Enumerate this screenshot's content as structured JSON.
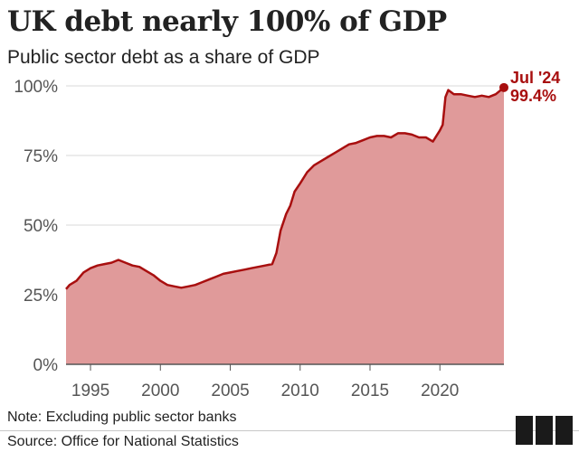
{
  "header": {
    "title": "UK debt nearly 100% of GDP",
    "subtitle": "Public sector debt as a share of GDP"
  },
  "footer": {
    "note": "Note: Excluding public sector banks",
    "source": "Source: Office for National Statistics"
  },
  "logo": {
    "icon": "bbc-blocks-logo-icon"
  },
  "chart_data": {
    "type": "area",
    "title": "UK debt nearly 100% of GDP",
    "subtitle": "Public sector debt as a share of GDP",
    "xlabel": "",
    "ylabel": "",
    "xlim": [
      1993.25,
      2024.58
    ],
    "ylim": [
      0,
      100
    ],
    "xticks": [
      1995,
      2000,
      2005,
      2010,
      2015,
      2020
    ],
    "yticks": [
      {
        "value": 0,
        "label": "0%"
      },
      {
        "value": 25,
        "label": "25%"
      },
      {
        "value": 50,
        "label": "50%"
      },
      {
        "value": 75,
        "label": "75%"
      },
      {
        "value": 100,
        "label": "100%"
      }
    ],
    "grid": true,
    "colors": {
      "line": "#a80f0f",
      "fill": "#e09a9a",
      "grid": "#d9d9d9",
      "axis": "#555555"
    },
    "series": [
      {
        "x": [
          1993.25,
          1993.5,
          1994,
          1994.5,
          1995,
          1995.5,
          1996,
          1996.5,
          1997,
          1997.5,
          1998,
          1998.5,
          1999,
          1999.5,
          2000,
          2000.5,
          2001,
          2001.5,
          2002,
          2002.5,
          2003,
          2003.5,
          2004,
          2004.5,
          2005,
          2005.5,
          2006,
          2006.5,
          2007,
          2007.5,
          2008,
          2008.3,
          2008.6,
          2009,
          2009.3,
          2009.6,
          2010,
          2010.5,
          2011,
          2011.5,
          2012,
          2012.5,
          2013,
          2013.5,
          2014,
          2014.5,
          2015,
          2015.5,
          2016,
          2016.5,
          2017,
          2017.5,
          2018,
          2018.5,
          2019,
          2019.5,
          2020,
          2020.2,
          2020.4,
          2020.6,
          2021,
          2021.5,
          2022,
          2022.5,
          2023,
          2023.5,
          2024,
          2024.58
        ],
        "values": [
          27,
          28.5,
          30,
          33,
          34.5,
          35.5,
          36,
          36.5,
          37.5,
          36.5,
          35.5,
          35,
          33.5,
          32,
          30,
          28.5,
          28,
          27.5,
          28,
          28.5,
          29.5,
          30.5,
          31.5,
          32.5,
          33,
          33.5,
          34,
          34.5,
          35,
          35.5,
          36,
          40,
          48,
          54,
          57,
          62,
          65,
          69,
          71.5,
          73,
          74.5,
          76,
          77.5,
          79,
          79.5,
          80.5,
          81.5,
          82,
          82,
          81.5,
          83,
          83,
          82.5,
          81.5,
          81.5,
          80,
          84,
          86,
          96,
          98.5,
          97,
          97,
          96.5,
          96,
          96.5,
          96,
          97,
          99.4
        ]
      }
    ],
    "annotation": {
      "date_label": "Jul '24",
      "value_label": "99.4%",
      "x": 2024.58,
      "y": 99.4
    }
  }
}
